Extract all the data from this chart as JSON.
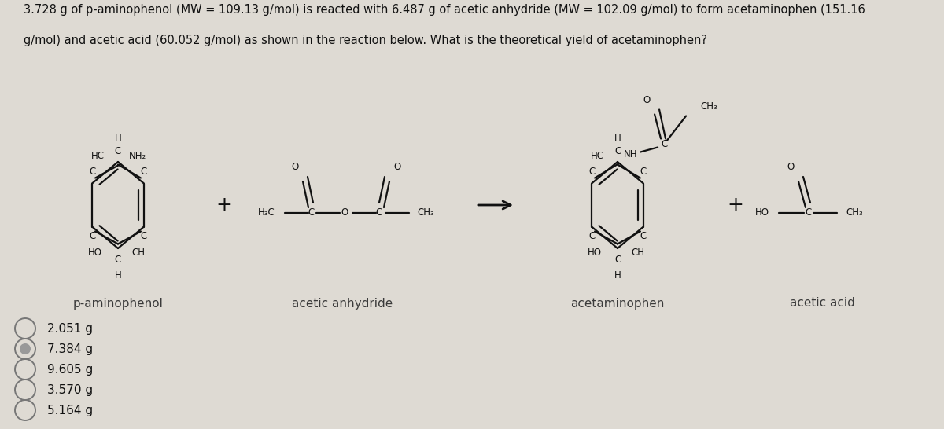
{
  "background_color": "#dedad3",
  "title_text_line1": "3.728 g of p-aminophenol (MW = 109.13 g/mol) is reacted with 6.487 g of acetic anhydride (MW = 102.09 g/mol) to form acetaminophen (151.16",
  "title_text_line2": "g/mol) and acetic acid (60.052 g/mol) as shown in the reaction below. What is the theoretical yield of acetaminophen?",
  "title_fontsize": 10.5,
  "answer_choices": [
    "2.051 g",
    "7.384 g",
    "9.605 g",
    "3.570 g",
    "5.164 g"
  ],
  "answer_fontsize": 11,
  "label_aminophenol": "p-aminophenol",
  "label_anhydride": "acetic anhydride",
  "label_acetaminophen": "acetaminophen",
  "label_aceticacid": "acetic acid",
  "label_fontsize": 11,
  "text_color": "#111111",
  "radio_color": "#777777",
  "struct_fontsize": 8.5,
  "lw": 1.6
}
